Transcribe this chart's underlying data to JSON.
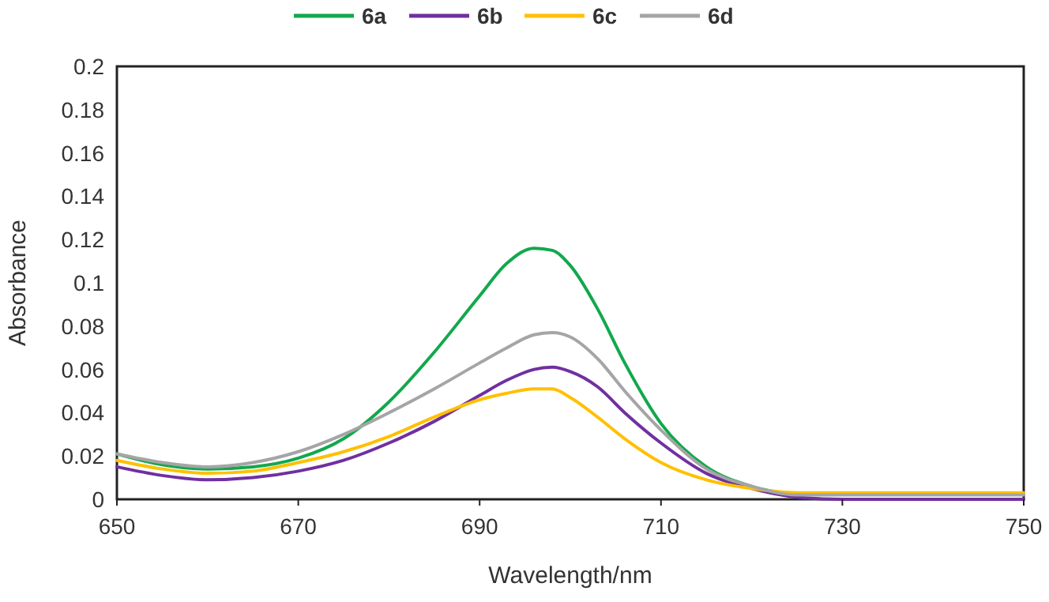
{
  "chart_data": {
    "type": "line",
    "xlabel": "Wavelength/nm",
    "ylabel": "Absorbance",
    "x": [
      650,
      655,
      660,
      665,
      670,
      675,
      680,
      685,
      690,
      693,
      696,
      698,
      700,
      703,
      706,
      710,
      715,
      720,
      725,
      730,
      740,
      750
    ],
    "series": [
      {
        "name": "6a",
        "color": "#12a84c",
        "values": [
          0.021,
          0.016,
          0.014,
          0.015,
          0.019,
          0.028,
          0.045,
          0.068,
          0.094,
          0.109,
          0.116,
          0.115,
          0.108,
          0.088,
          0.063,
          0.035,
          0.015,
          0.006,
          0.002,
          null,
          null,
          null
        ]
      },
      {
        "name": "6b",
        "color": "#7030a0",
        "values": [
          0.015,
          0.011,
          0.009,
          0.01,
          0.013,
          0.018,
          0.026,
          0.036,
          0.048,
          0.055,
          0.06,
          0.061,
          0.059,
          0.052,
          0.04,
          0.026,
          0.012,
          0.005,
          0.001,
          0,
          0,
          0
        ]
      },
      {
        "name": "6c",
        "color": "#ffc000",
        "values": [
          0.018,
          0.014,
          0.012,
          0.013,
          0.017,
          0.022,
          0.029,
          0.038,
          0.046,
          0.049,
          0.051,
          0.051,
          0.047,
          0.038,
          0.028,
          0.017,
          0.009,
          0.005,
          0.003,
          0.003,
          0.003,
          0.003
        ]
      },
      {
        "name": "6d",
        "color": "#a5a5a5",
        "values": [
          0.021,
          0.017,
          0.015,
          0.017,
          0.022,
          0.03,
          0.04,
          0.051,
          0.063,
          0.07,
          0.076,
          0.077,
          0.075,
          0.065,
          0.05,
          0.032,
          0.014,
          0.006,
          0.002,
          0.002,
          0.002,
          0.002
        ]
      }
    ],
    "xlim": [
      650,
      750
    ],
    "xticks": [
      650,
      670,
      690,
      710,
      730,
      750
    ],
    "ylim": [
      0,
      0.2
    ],
    "yticks": [
      0,
      0.02,
      0.04,
      0.06,
      0.08,
      0.1,
      0.12,
      0.14,
      0.16,
      0.18,
      0.2
    ],
    "grid": false,
    "legend": "top",
    "marker": "none",
    "line_style": "solid"
  }
}
